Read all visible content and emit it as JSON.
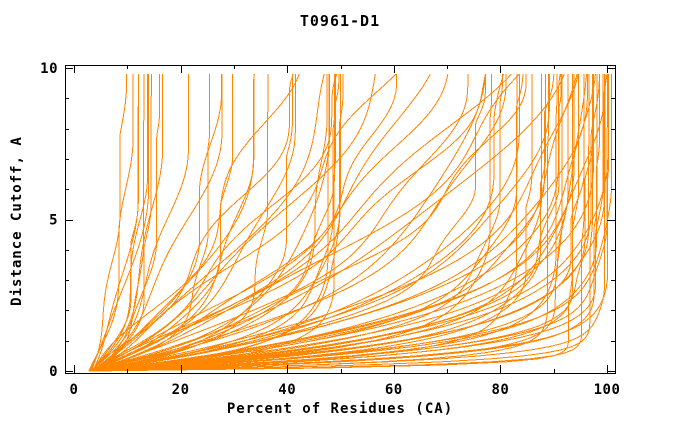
{
  "colors": {
    "curve": "#ff8600",
    "axis": "#000000",
    "background": "#ffffff"
  },
  "chart_data": {
    "type": "line",
    "title": "T0961-D1",
    "xlabel": "Percent of Residues (CA)",
    "ylabel": "Distance Cutoff, A",
    "xlim": [
      0,
      100
    ],
    "ylim": [
      0,
      10
    ],
    "x_major_ticks": [
      0,
      20,
      40,
      60,
      80,
      100
    ],
    "x_major_labels": [
      "0",
      "20",
      "40",
      "60",
      "80",
      "100"
    ],
    "x_minor_ticks": [
      10,
      30,
      50,
      70,
      90
    ],
    "y_major_ticks": [
      0,
      5,
      10
    ],
    "y_major_labels": [
      "0",
      "5",
      "10"
    ],
    "y_minor_ticks": [
      1,
      2,
      3,
      4,
      6,
      7,
      8,
      9
    ],
    "grid": false,
    "legend": "none",
    "description": "Dense fan of overlapping per-model accuracy curves, all starting near (3,0); percent of CA residues (x) within each distance cutoff (y).",
    "curve_model": "x(y) = x0 + (xmax-x0)*(1-exp(-y/tau)) + wob*sin(freq*y+phase)*(1-exp(-y/0.8)), clamped monotone nondecreasing, 0 <= y <= 9.8",
    "curve_fields": [
      "x0",
      "xmax",
      "tau",
      "wob",
      "freq",
      "phase"
    ],
    "curves": [
      [
        3.0,
        100.4,
        0.9,
        0.6,
        1.2,
        0.4
      ],
      [
        3.2,
        100.1,
        1.4,
        0.8,
        0.9,
        1.7
      ],
      [
        2.8,
        99.8,
        0.5,
        0.5,
        1.6,
        3.1
      ],
      [
        3.5,
        99.6,
        2.0,
        1.0,
        1.1,
        4.4
      ],
      [
        3.1,
        99.4,
        0.7,
        0.7,
        1.8,
        5.6
      ],
      [
        3.8,
        99.2,
        1.1,
        0.9,
        1.3,
        0.9
      ],
      [
        3.3,
        99.0,
        0.35,
        0.6,
        2.0,
        2.2
      ],
      [
        3.0,
        98.8,
        1.7,
        1.2,
        0.8,
        3.6
      ],
      [
        3.6,
        98.5,
        0.6,
        0.8,
        1.5,
        4.9
      ],
      [
        3.2,
        98.2,
        2.5,
        1.1,
        1.0,
        6.0
      ],
      [
        2.9,
        98.0,
        0.8,
        0.6,
        1.7,
        1.2
      ],
      [
        3.4,
        97.7,
        1.2,
        0.9,
        1.2,
        2.5
      ],
      [
        3.1,
        97.4,
        0.45,
        0.7,
        1.9,
        3.8
      ],
      [
        3.7,
        97.1,
        1.9,
        1.3,
        0.9,
        5.1
      ],
      [
        3.0,
        96.8,
        0.25,
        0.5,
        1.4,
        0.6
      ],
      [
        3.3,
        96.5,
        1.0,
        1.0,
        1.6,
        1.9
      ],
      [
        2.8,
        96.2,
        2.8,
        1.2,
        1.1,
        3.3
      ],
      [
        3.5,
        95.9,
        0.65,
        0.7,
        2.1,
        4.6
      ],
      [
        3.1,
        95.5,
        1.5,
        0.9,
        0.8,
        5.8
      ],
      [
        3.9,
        95.1,
        0.18,
        0.6,
        1.3,
        1.0
      ],
      [
        3.2,
        94.7,
        0.95,
        1.1,
        1.8,
        2.4
      ],
      [
        3.0,
        94.3,
        2.2,
        1.4,
        1.0,
        3.7
      ],
      [
        3.6,
        93.9,
        0.55,
        0.8,
        1.5,
        5.0
      ],
      [
        3.3,
        93.4,
        1.3,
        1.0,
        1.2,
        0.2
      ],
      [
        2.9,
        93.0,
        0.15,
        0.5,
        1.9,
        1.6
      ],
      [
        3.4,
        92.5,
        1.8,
        1.2,
        0.9,
        2.9
      ],
      [
        3.1,
        92.0,
        0.75,
        0.7,
        1.7,
        4.2
      ],
      [
        3.7,
        91.5,
        2.6,
        1.3,
        1.1,
        5.5
      ],
      [
        3.0,
        91.0,
        0.4,
        0.6,
        1.4,
        0.8
      ],
      [
        3.5,
        90.4,
        1.15,
        1.0,
        2.0,
        2.1
      ],
      [
        3.2,
        89.8,
        0.6,
        0.8,
        1.2,
        3.4
      ],
      [
        3.0,
        89.1,
        1.6,
        1.1,
        1.6,
        4.8
      ],
      [
        3.6,
        88.4,
        0.3,
        0.6,
        1.0,
        6.1
      ],
      [
        3.3,
        87.6,
        0.85,
        0.9,
        1.8,
        1.4
      ],
      [
        3.1,
        86.8,
        1.0,
        1.2,
        1.3,
        0.5
      ],
      [
        3.4,
        85.9,
        2.4,
        1.5,
        0.9,
        1.8
      ],
      [
        3.0,
        85.0,
        0.7,
        0.9,
        1.7,
        3.2
      ],
      [
        3.6,
        84.1,
        3.2,
        1.6,
        1.1,
        4.5
      ],
      [
        3.2,
        83.2,
        1.4,
        1.1,
        1.5,
        5.7
      ],
      [
        2.9,
        82.3,
        0.5,
        0.8,
        2.0,
        1.1
      ],
      [
        3.5,
        81.4,
        2.0,
        1.4,
        1.0,
        2.6
      ],
      [
        3.1,
        80.4,
        4.0,
        1.7,
        1.2,
        3.9
      ],
      [
        3.3,
        79.4,
        1.1,
        1.0,
        1.6,
        5.2
      ],
      [
        3.0,
        78.4,
        2.9,
        1.5,
        0.8,
        0.3
      ],
      [
        3.6,
        77.4,
        0.8,
        0.9,
        1.4,
        1.7
      ],
      [
        3.2,
        76.3,
        1.7,
        1.2,
        1.9,
        3.0
      ],
      [
        3.0,
        108.0,
        5.5,
        2.0,
        0.8,
        0.6
      ],
      [
        3.4,
        112.0,
        7.0,
        2.4,
        1.0,
        2.0
      ],
      [
        3.1,
        88.0,
        6.5,
        1.8,
        1.2,
        3.4
      ],
      [
        3.5,
        75.0,
        5.0,
        2.2,
        0.9,
        4.8
      ],
      [
        3.0,
        70.0,
        7.5,
        2.6,
        1.1,
        0.1
      ],
      [
        3.3,
        65.0,
        4.0,
        1.6,
        1.4,
        1.5
      ],
      [
        3.0,
        60.0,
        6.0,
        2.0,
        0.8,
        2.9
      ],
      [
        3.6,
        56.0,
        8.5,
        2.8,
        1.0,
        4.3
      ],
      [
        3.2,
        64.0,
        9.0,
        2.4,
        1.2,
        5.5
      ],
      [
        3.0,
        80.0,
        8.0,
        2.2,
        0.9,
        1.0
      ],
      [
        3.4,
        90.0,
        9.5,
        2.6,
        1.1,
        2.3
      ],
      [
        3.1,
        100.0,
        6.5,
        2.0,
        1.3,
        3.7
      ],
      [
        3.3,
        118.0,
        9.0,
        2.8,
        0.9,
        5.0
      ],
      [
        3.2,
        95.0,
        4.5,
        1.8,
        1.5,
        0.9
      ],
      [
        3.0,
        49.8,
        1.2,
        0.7,
        1.5,
        0.4
      ],
      [
        3.2,
        49.4,
        0.8,
        0.6,
        1.1,
        1.8
      ],
      [
        2.9,
        49.0,
        1.6,
        0.8,
        1.8,
        3.2
      ],
      [
        3.4,
        48.6,
        0.55,
        0.5,
        1.3,
        4.6
      ],
      [
        3.1,
        48.2,
        1.0,
        0.7,
        1.7,
        5.9
      ],
      [
        3.3,
        47.8,
        1.9,
        0.9,
        0.9,
        1.3
      ],
      [
        3.0,
        47.3,
        0.7,
        0.6,
        1.5,
        2.7
      ],
      [
        3.2,
        46.8,
        1.35,
        0.8,
        1.2,
        4.1
      ],
      [
        3.0,
        16.0,
        2.2,
        1.1,
        1.0,
        0.7
      ],
      [
        3.2,
        15.2,
        1.4,
        0.9,
        1.4,
        2.1
      ],
      [
        2.9,
        14.5,
        3.0,
        1.2,
        0.8,
        3.5
      ],
      [
        3.3,
        13.8,
        1.0,
        0.7,
        1.7,
        4.9
      ],
      [
        3.1,
        13.1,
        1.8,
        1.0,
        1.2,
        0.2
      ],
      [
        3.0,
        12.5,
        0.8,
        0.6,
        1.5,
        1.6
      ],
      [
        3.4,
        11.9,
        2.5,
        1.1,
        0.9,
        3.0
      ],
      [
        3.1,
        11.3,
        1.2,
        0.8,
        1.8,
        4.4
      ],
      [
        2.8,
        10.6,
        2.6,
        0.9,
        1.1,
        5.8
      ],
      [
        3.2,
        9.8,
        3.8,
        0.6,
        1.4,
        1.1
      ],
      [
        3.0,
        42.5,
        2.8,
        1.6,
        1.0,
        0.5
      ],
      [
        3.3,
        40.0,
        1.2,
        1.0,
        1.5,
        1.9
      ],
      [
        3.1,
        37.8,
        3.6,
        1.7,
        0.8,
        3.3
      ],
      [
        3.5,
        35.6,
        0.9,
        0.8,
        1.8,
        4.7
      ],
      [
        3.0,
        33.4,
        2.0,
        1.3,
        1.2,
        6.0
      ],
      [
        3.2,
        31.2,
        4.5,
        1.8,
        0.9,
        1.4
      ],
      [
        2.9,
        29.0,
        1.5,
        1.0,
        1.6,
        2.8
      ],
      [
        3.4,
        26.8,
        2.4,
        1.4,
        1.1,
        4.2
      ],
      [
        3.1,
        24.6,
        1.0,
        0.8,
        1.9,
        5.6
      ],
      [
        3.0,
        22.0,
        3.2,
        1.5,
        1.0,
        0.9
      ]
    ]
  }
}
